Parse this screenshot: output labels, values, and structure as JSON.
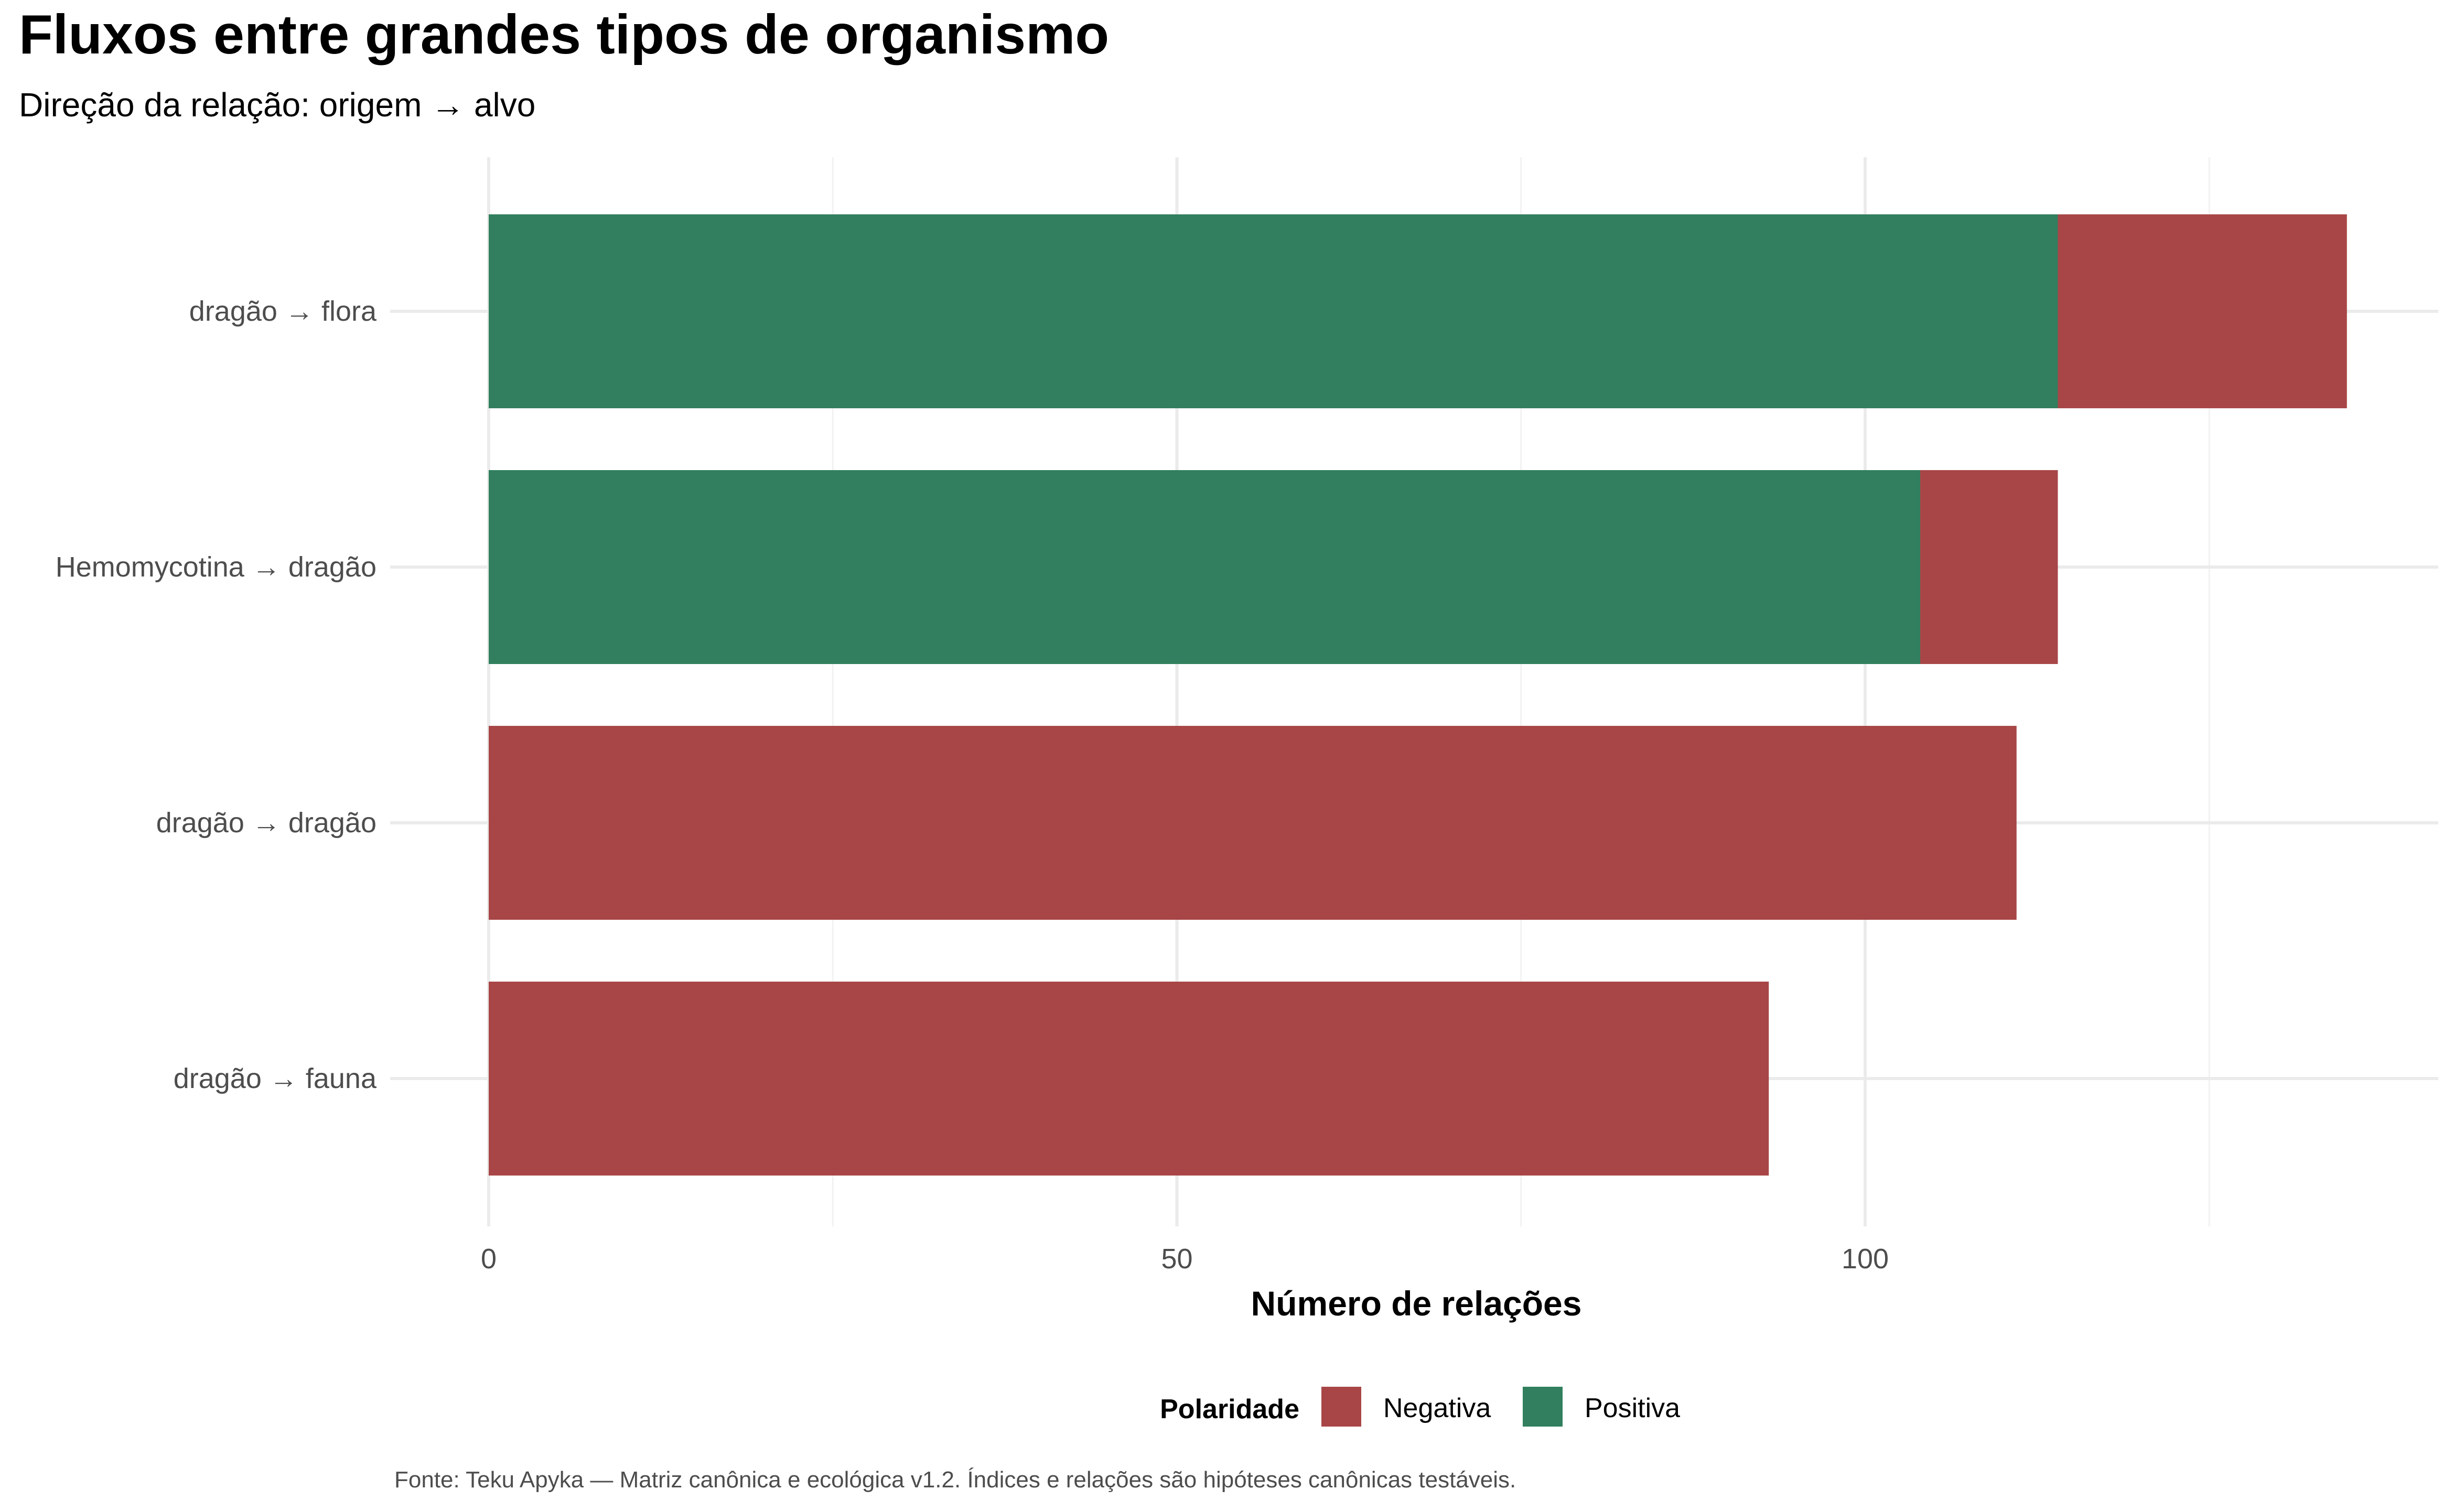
{
  "chart_data": {
    "type": "bar",
    "orientation": "horizontal",
    "stacked": true,
    "title": "Fluxos entre grandes tipos de organismo",
    "subtitle": "Direção da relação: origem → alvo",
    "xlabel": "Número de relações",
    "ylabel": "",
    "categories": [
      "dragão → flora",
      "Hemomycotina → dragão",
      "dragão → dragão",
      "dragão → fauna"
    ],
    "series": [
      {
        "name": "Positiva",
        "color": "#317f5e",
        "values": [
          114,
          104,
          0,
          0
        ]
      },
      {
        "name": "Negativa",
        "color": "#a84647",
        "values": [
          21,
          10,
          111,
          93
        ]
      }
    ],
    "xlim": [
      0,
      142
    ],
    "xticks": [
      0,
      50,
      100
    ],
    "grid": true,
    "legend": {
      "title": "Polaridade",
      "placement": "bottom",
      "entries": [
        {
          "label": "Negativa",
          "color": "#a84647"
        },
        {
          "label": "Positiva",
          "color": "#317f5e"
        }
      ]
    },
    "caption": "Fonte: Teku Apyka — Matriz canônica e ecológica v1.2. Índices e relações são hipóteses canônicas testáveis."
  }
}
